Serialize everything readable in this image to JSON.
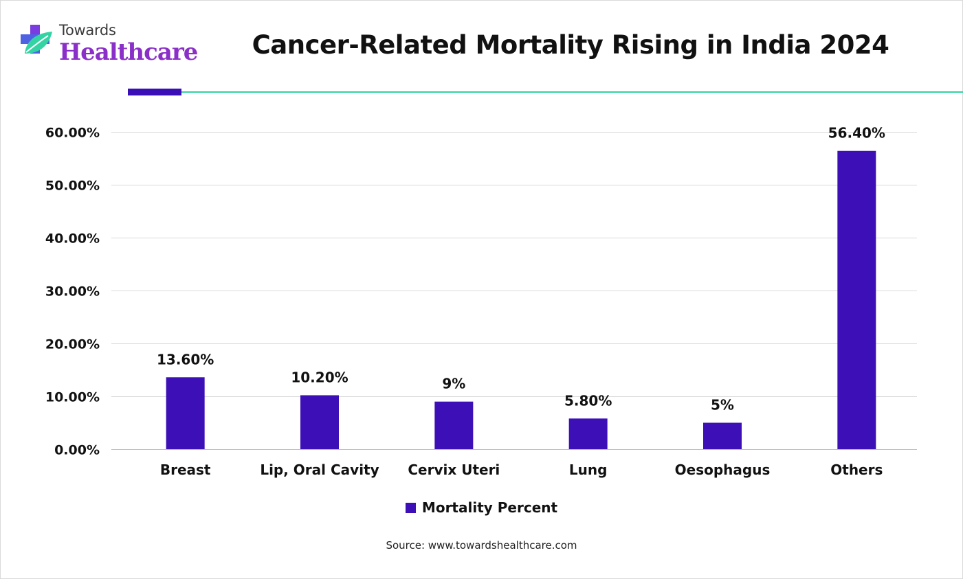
{
  "logo": {
    "top_text": "Towards",
    "main_text": "Healthcare",
    "icon": "health-cross-leaf-icon",
    "colors": {
      "purple": "#8b2fc9",
      "blue": "#3b50e0",
      "green": "#34d3a3"
    }
  },
  "accent": {
    "purple": "#3b0fb8",
    "green": "#2fd3a0"
  },
  "source": "Source: www.towardshealthcare.com",
  "chart_data": {
    "type": "bar",
    "title": "Cancer-Related Mortality Rising in India 2024",
    "categories": [
      "Breast",
      "Lip, Oral Cavity",
      "Cervix Uteri",
      "Lung",
      "Oesophagus",
      "Others"
    ],
    "series": [
      {
        "name": "Mortality Percent",
        "color": "#3d10b7",
        "values": [
          13.6,
          10.2,
          9,
          5.8,
          5,
          56.4
        ],
        "labels": [
          "13.60%",
          "10.20%",
          "9%",
          "5.80%",
          "5%",
          "56.40%"
        ]
      }
    ],
    "ylim": [
      0,
      60
    ],
    "yticks": [
      0,
      10,
      20,
      30,
      40,
      50,
      60
    ],
    "ytick_labels": [
      "0.00%",
      "10.00%",
      "20.00%",
      "30.00%",
      "40.00%",
      "50.00%",
      "60.00%"
    ],
    "xlabel": "",
    "ylabel": "",
    "grid": true,
    "legend_position": "bottom-center"
  }
}
